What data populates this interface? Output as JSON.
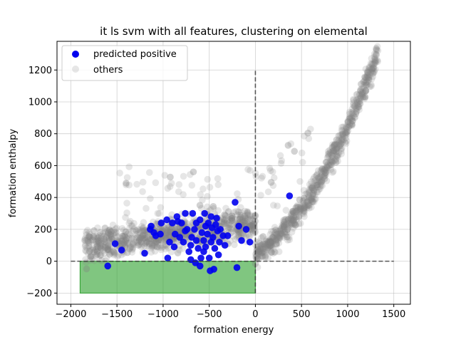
{
  "chart_data": {
    "type": "scatter",
    "title": "it ls svm with all features, clustering on elemental",
    "xlabel": "formation energy",
    "ylabel": "formation enthalpy",
    "xlim": [
      -2150,
      1680
    ],
    "ylim": [
      -270,
      1380
    ],
    "xticks": [
      -2000,
      -1500,
      -1000,
      -500,
      0,
      500,
      1000,
      1500
    ],
    "xtick_labels": [
      "−2000",
      "−1500",
      "−1000",
      "−500",
      "0",
      "500",
      "1000",
      "1500"
    ],
    "yticks": [
      -200,
      0,
      200,
      400,
      600,
      800,
      1000,
      1200
    ],
    "ytick_labels": [
      "−200",
      "0",
      "200",
      "400",
      "600",
      "800",
      "1000",
      "1200"
    ],
    "grid": true,
    "legend_position": "upper left",
    "colors": {
      "predicted_positive": "#0000ee",
      "others": "#808080",
      "region_fill": "#2ca02c",
      "dashed_line": "#333333"
    },
    "shaded_region": {
      "x": [
        -1900,
        0
      ],
      "y": [
        -200,
        0
      ]
    },
    "reference_lines": [
      {
        "type": "horizontal",
        "y": 0,
        "x": [
          -2000,
          1500
        ]
      },
      {
        "type": "vertical",
        "x": 0,
        "y": [
          -200,
          1200
        ]
      }
    ],
    "series": [
      {
        "name": "predicted positive",
        "marker": "circle",
        "color": "#0000ee",
        "points": [
          [
            -1600,
            -30
          ],
          [
            -1520,
            110
          ],
          [
            -1450,
            70
          ],
          [
            -1200,
            50
          ],
          [
            -1130,
            220
          ],
          [
            -1100,
            180
          ],
          [
            -1080,
            160
          ],
          [
            -1030,
            170
          ],
          [
            -1020,
            240
          ],
          [
            -950,
            20
          ],
          [
            -930,
            120
          ],
          [
            -900,
            240
          ],
          [
            -850,
            280
          ],
          [
            -840,
            250
          ],
          [
            -820,
            150
          ],
          [
            -800,
            240
          ],
          [
            -780,
            120
          ],
          [
            -760,
            300
          ],
          [
            -740,
            200
          ],
          [
            -720,
            60
          ],
          [
            -700,
            100
          ],
          [
            -690,
            150
          ],
          [
            -680,
            300
          ],
          [
            -660,
            200
          ],
          [
            -640,
            130
          ],
          [
            -620,
            80
          ],
          [
            -600,
            260
          ],
          [
            -590,
            20
          ],
          [
            -580,
            180
          ],
          [
            -560,
            130
          ],
          [
            -550,
            300
          ],
          [
            -540,
            90
          ],
          [
            -520,
            170
          ],
          [
            -510,
            240
          ],
          [
            -500,
            20
          ],
          [
            -490,
            -60
          ],
          [
            -480,
            280
          ],
          [
            -470,
            210
          ],
          [
            -460,
            150
          ],
          [
            -450,
            -50
          ],
          [
            -440,
            80
          ],
          [
            -430,
            230
          ],
          [
            -420,
            270
          ],
          [
            -410,
            190
          ],
          [
            -400,
            40
          ],
          [
            -390,
            120
          ],
          [
            -380,
            200
          ],
          [
            -350,
            160
          ],
          [
            -330,
            100
          ],
          [
            -300,
            160
          ],
          [
            -220,
            370
          ],
          [
            -200,
            -40
          ],
          [
            -180,
            220
          ],
          [
            -150,
            130
          ],
          [
            -100,
            200
          ],
          [
            -60,
            120
          ],
          [
            -1140,
            200
          ],
          [
            -870,
            170
          ],
          [
            -640,
            240
          ],
          [
            -560,
            60
          ],
          [
            -480,
            120
          ],
          [
            -600,
            -30
          ],
          [
            -650,
            -10
          ],
          [
            -880,
            90
          ],
          [
            -760,
            190
          ],
          [
            -540,
            220
          ],
          [
            -960,
            260
          ],
          [
            -700,
            10
          ],
          [
            370,
            410
          ]
        ]
      },
      {
        "name": "others",
        "marker": "circle",
        "color": "#808080",
        "opacity": 0.2,
        "generated_points": 1800
      }
    ]
  }
}
